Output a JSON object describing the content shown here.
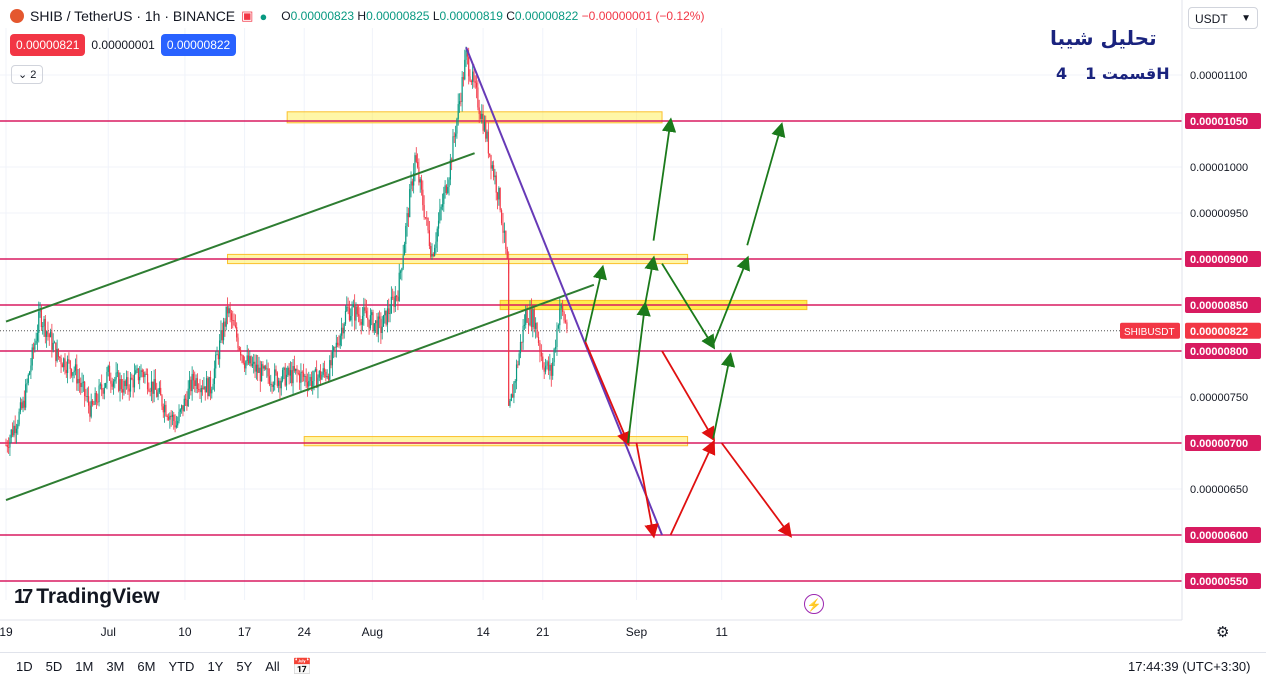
{
  "legend": {
    "symbol": "SHIB / TetherUS · 1h · BINANCE",
    "ohlc": {
      "o": "0.00000823",
      "h": "0.00000825",
      "l": "0.00000819",
      "c": "0.00000822",
      "change": "−0.00000001 (−0.12%)"
    }
  },
  "trade": {
    "sell": "0.00000821",
    "spread": "0.00000001",
    "buy": "0.00000822"
  },
  "indicator_count": "2",
  "currency": "USDT",
  "annotation": {
    "title": "تحلیل شیبا",
    "part": "قسمت 4",
    "timeframe": "1H"
  },
  "colors": {
    "up": "#089981",
    "down": "#f23645",
    "level": "#d81b60",
    "zone": "#ffeb3b",
    "channel": "#2e7d32",
    "trendline": "#673ab7",
    "arrow_green": "#1b7a1b",
    "arrow_red": "#e01010"
  },
  "brand": "TradingView",
  "ranges": [
    "1D",
    "5D",
    "1M",
    "3M",
    "6M",
    "YTD",
    "1Y",
    "5Y",
    "All"
  ],
  "clock": "17:44:39 (UTC+3:30)",
  "chart_data": {
    "type": "candlestick",
    "symbol": "SHIBUSDT",
    "current_price": "0.00000822",
    "ylim": [
      5.48e-06,
      1.175e-05
    ],
    "y_ticks": [
      "0.00001100",
      "0.00001050",
      "0.00001000",
      "0.00000950",
      "0.00000900",
      "0.00000850",
      "0.00000800",
      "0.00000750",
      "0.00000700",
      "0.00000650",
      "0.00000600",
      "0.00000550"
    ],
    "x_ticks": [
      "19",
      "Jul",
      "10",
      "17",
      "24",
      "Aug",
      "14",
      "21",
      "Sep",
      "11"
    ],
    "highlighted_levels": [
      "0.00001050",
      "0.00000900",
      "0.00000850",
      "0.00000800",
      "0.00000700",
      "0.00000600",
      "0.00000550"
    ],
    "price_path": [
      [
        "2023-06-19",
        6.98e-06
      ],
      [
        "2023-06-21",
        7.4e-06
      ],
      [
        "2023-06-23",
        8.4e-06
      ],
      [
        "2023-06-25",
        7.95e-06
      ],
      [
        "2023-06-27",
        7.8e-06
      ],
      [
        "2023-06-29",
        7.35e-06
      ],
      [
        "2023-07-01",
        7.75e-06
      ],
      [
        "2023-07-03",
        7.6e-06
      ],
      [
        "2023-07-05",
        7.78e-06
      ],
      [
        "2023-07-07",
        7.5e-06
      ],
      [
        "2023-07-09",
        7.2e-06
      ],
      [
        "2023-07-11",
        7.7e-06
      ],
      [
        "2023-07-13",
        7.6e-06
      ],
      [
        "2023-07-15",
        8.45e-06
      ],
      [
        "2023-07-17",
        7.9e-06
      ],
      [
        "2023-07-19",
        7.75e-06
      ],
      [
        "2023-07-21",
        7.7e-06
      ],
      [
        "2023-07-23",
        7.75e-06
      ],
      [
        "2023-07-25",
        7.68e-06
      ],
      [
        "2023-07-27",
        7.8e-06
      ],
      [
        "2023-07-29",
        8.45e-06
      ],
      [
        "2023-07-31",
        8.38e-06
      ],
      [
        "2023-08-02",
        8.25e-06
      ],
      [
        "2023-08-04",
        8.65e-06
      ],
      [
        "2023-08-06",
        1.01e-05
      ],
      [
        "2023-08-08",
        9.05e-06
      ],
      [
        "2023-08-10",
        9.95e-06
      ],
      [
        "2023-08-12",
        1.12e-05
      ],
      [
        "2023-08-14",
        1.05e-05
      ],
      [
        "2023-08-16",
        9.6e-06
      ],
      [
        "2023-08-17",
        8.8e-06
      ],
      [
        "2023-08-17",
        7.3e-06
      ],
      [
        "2023-08-19",
        8.4e-06
      ],
      [
        "2023-08-20",
        8.35e-06
      ],
      [
        "2023-08-21",
        7.88e-06
      ],
      [
        "2023-08-22",
        7.76e-06
      ],
      [
        "2023-08-23",
        8.48e-06
      ],
      [
        "2023-08-24",
        8.22e-06
      ]
    ]
  }
}
